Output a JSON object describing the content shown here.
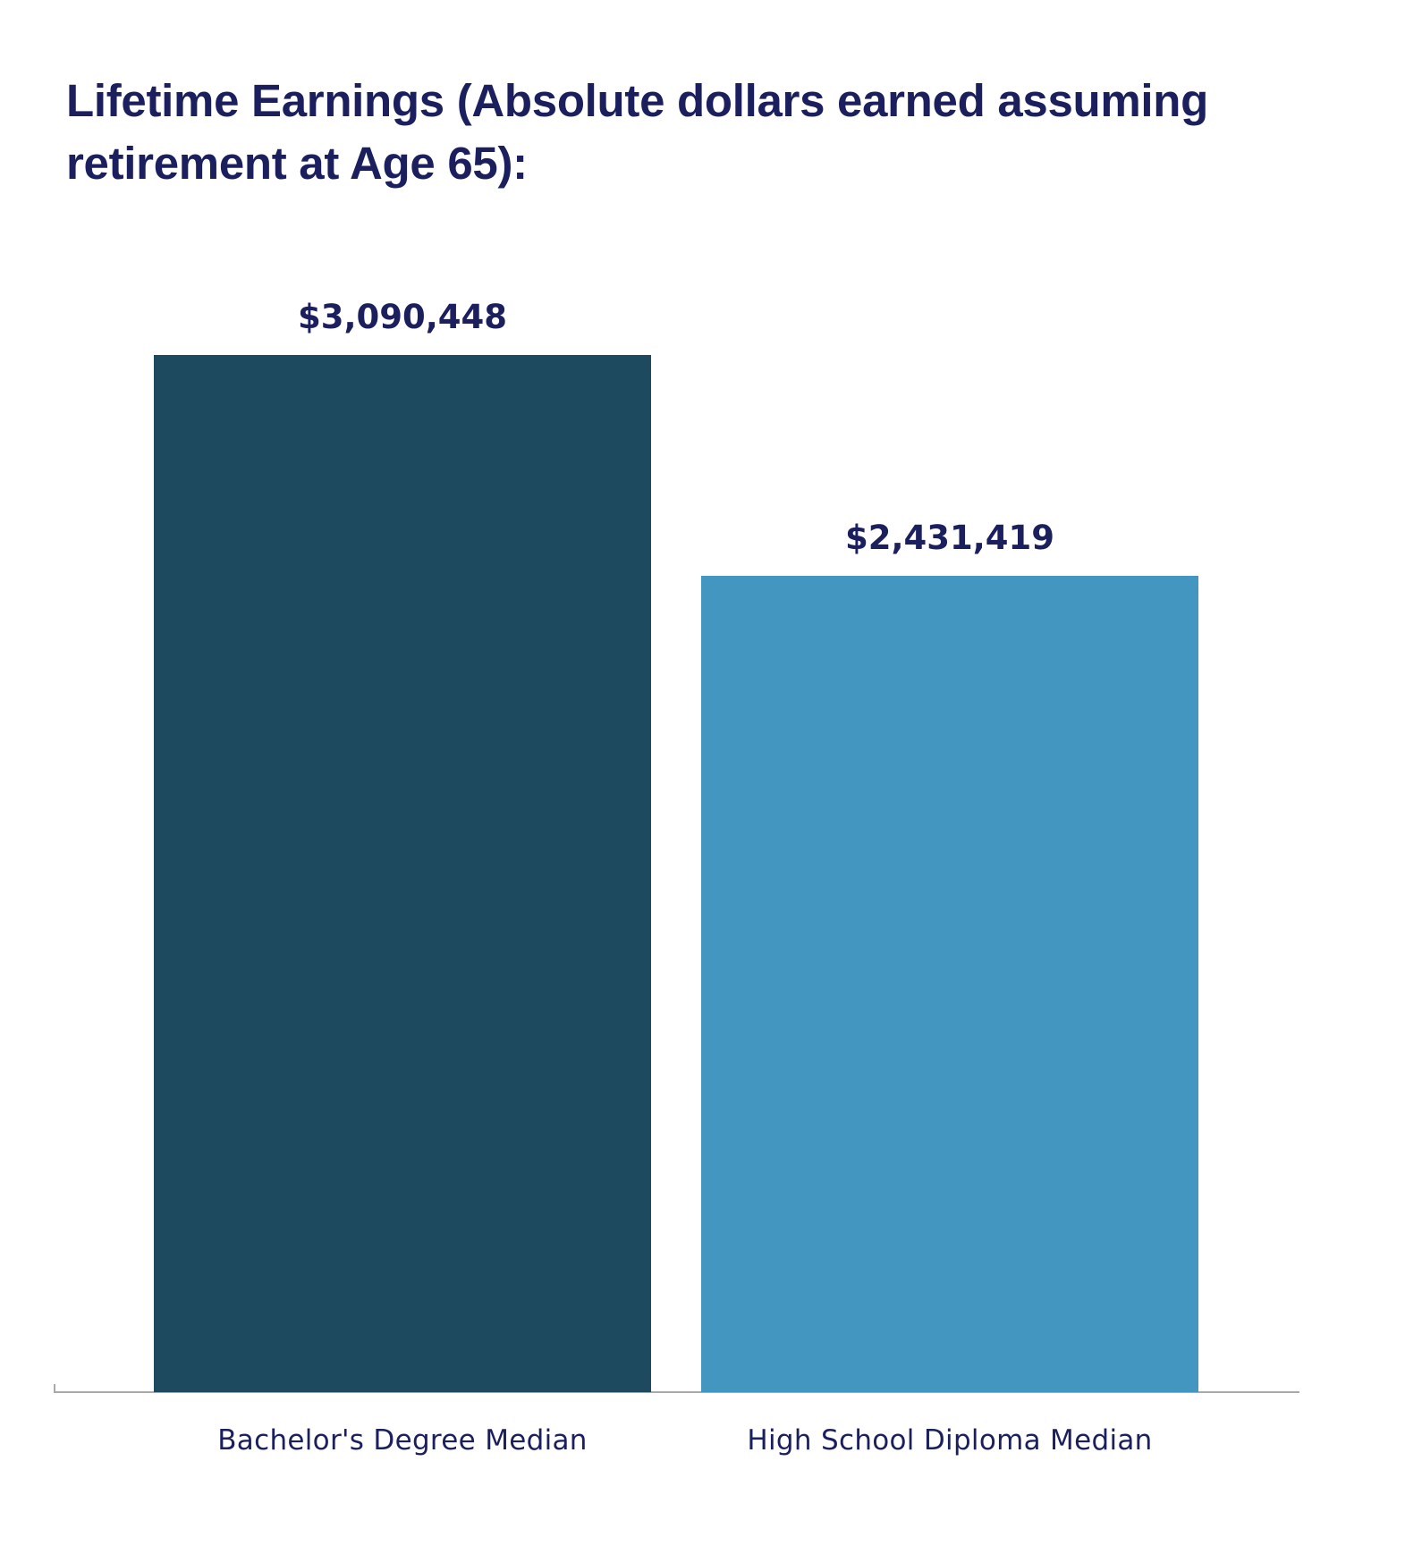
{
  "chart_data": {
    "type": "bar",
    "title": "Lifetime Earnings (Absolute dollars earned assuming retirement at Age 65):",
    "title_lines": [
      "Lifetime Earnings (Absolute dollars earned assuming",
      "retirement at Age 65):"
    ],
    "categories": [
      "Bachelor's Degree Median",
      "High School Diploma Median"
    ],
    "values": [
      3090448,
      2431419
    ],
    "value_labels": [
      "$3,090,448",
      "$2,431,419"
    ],
    "colors": [
      "#1e4a5f",
      "#4396c0"
    ],
    "xlabel": "",
    "ylabel": "",
    "ylim": [
      0,
      3090448
    ],
    "grid": false,
    "legend": null,
    "y_axis_visible": false,
    "text_color": "#1b1f5e",
    "axis_color": "#a9a9a9"
  }
}
